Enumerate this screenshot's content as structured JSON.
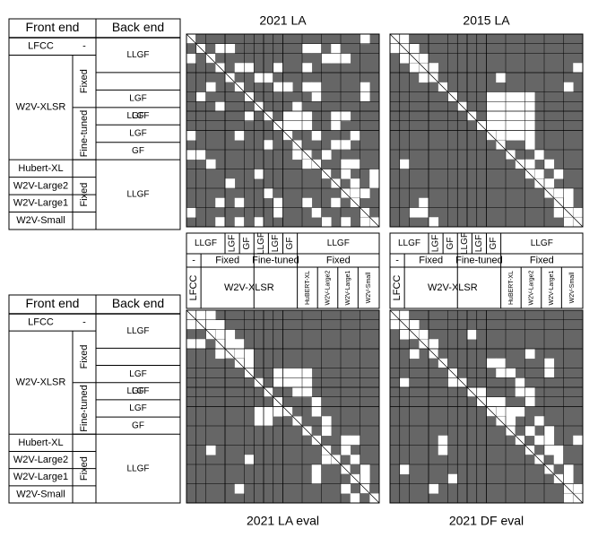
{
  "colors": {
    "cell": "#666666",
    "highlight": "#ffffff",
    "line": "#000000",
    "diag": "#8a8a8a"
  },
  "left_table": {
    "headers": {
      "front": "Front end",
      "back": "Back end"
    },
    "rows": [
      {
        "front": "LFCC",
        "group": "-",
        "back": "LLGF"
      },
      {
        "front": "W2V-XLSR",
        "group": "Fixed",
        "back": "LLGF"
      },
      {
        "front": "W2V-XLSR",
        "group": "Fixed",
        "back": "LGF"
      },
      {
        "front": "W2V-XLSR",
        "group": "Fixed",
        "back": "GF"
      },
      {
        "front": "W2V-XLSR",
        "group": "Fine-tuned",
        "back": "LLGF"
      },
      {
        "front": "W2V-XLSR",
        "group": "Fine-tuned",
        "back": "LGF"
      },
      {
        "front": "W2V-XLSR",
        "group": "Fine-tuned",
        "back": "GF"
      },
      {
        "front": "Hubert-XL",
        "group": "Fixed",
        "back": "LLGF"
      },
      {
        "front": "W2V-Large2",
        "group": "Fixed",
        "back": "LLGF"
      },
      {
        "front": "W2V-Large1",
        "group": "Fixed",
        "back": "LLGF"
      },
      {
        "front": "W2V-Small",
        "group": "Fixed",
        "back": "LLGF"
      }
    ]
  },
  "bottom_legend": {
    "back_labels": [
      "LLGF",
      "LGF",
      "GF",
      "LLGF",
      "LGF",
      "GF",
      "LLGF"
    ],
    "group_labels": [
      "-",
      "Fixed",
      "Fine-tuned",
      "Fixed"
    ],
    "front_labels": [
      "LFCC",
      "W2V-XLSR",
      "HuBERT-XL",
      "W2V-Large2",
      "W2V-Large1",
      "W2V-Small"
    ]
  },
  "chart_data": [
    {
      "type": "heatmap",
      "title": "2021 LA",
      "caption": "",
      "size": 20,
      "cells": [
        [
          0,
          18
        ],
        [
          1,
          3
        ],
        [
          1,
          4
        ],
        [
          1,
          12
        ],
        [
          1,
          13
        ],
        [
          1,
          15
        ],
        [
          2,
          0
        ],
        [
          2,
          14
        ],
        [
          2,
          15
        ],
        [
          2,
          16
        ],
        [
          3,
          5
        ],
        [
          3,
          6
        ],
        [
          3,
          9
        ],
        [
          3,
          12
        ],
        [
          4,
          7
        ],
        [
          4,
          8
        ],
        [
          5,
          2
        ],
        [
          5,
          9
        ],
        [
          5,
          10
        ],
        [
          5,
          12
        ],
        [
          5,
          13
        ],
        [
          5,
          18
        ],
        [
          6,
          1
        ],
        [
          6,
          13
        ],
        [
          6,
          18
        ],
        [
          7,
          3
        ],
        [
          7,
          11
        ],
        [
          8,
          6
        ],
        [
          8,
          10
        ],
        [
          8,
          11
        ],
        [
          8,
          12
        ],
        [
          8,
          15
        ],
        [
          8,
          16
        ],
        [
          9,
          9
        ],
        [
          9,
          10
        ],
        [
          9,
          11
        ],
        [
          9,
          12
        ],
        [
          9,
          15
        ],
        [
          10,
          0
        ],
        [
          10,
          5
        ],
        [
          10,
          13
        ],
        [
          10,
          17
        ],
        [
          11,
          8
        ],
        [
          11,
          15
        ],
        [
          11,
          16
        ],
        [
          12,
          0
        ],
        [
          12,
          1
        ],
        [
          12,
          11
        ],
        [
          12,
          12
        ],
        [
          12,
          14
        ],
        [
          13,
          2
        ],
        [
          13,
          12
        ],
        [
          13,
          16
        ],
        [
          13,
          17
        ],
        [
          14,
          7
        ],
        [
          14,
          14
        ],
        [
          14,
          16
        ],
        [
          14,
          19
        ],
        [
          15,
          4
        ],
        [
          15,
          17
        ],
        [
          15,
          19
        ],
        [
          16,
          8
        ],
        [
          16,
          16
        ],
        [
          16,
          17
        ],
        [
          16,
          18
        ],
        [
          17,
          3
        ],
        [
          17,
          5
        ],
        [
          17,
          9
        ],
        [
          17,
          12
        ],
        [
          17,
          15
        ],
        [
          18,
          0
        ],
        [
          18,
          9
        ],
        [
          18,
          13
        ],
        [
          19,
          3
        ],
        [
          19,
          5
        ],
        [
          19,
          7
        ],
        [
          19,
          14
        ],
        [
          19,
          16
        ],
        [
          19,
          18
        ]
      ]
    },
    {
      "type": "heatmap",
      "title": "2015 LA",
      "caption": "",
      "size": 20,
      "cells": [
        [
          0,
          1
        ],
        [
          1,
          0
        ],
        [
          1,
          2
        ],
        [
          2,
          1
        ],
        [
          2,
          3
        ],
        [
          3,
          2
        ],
        [
          3,
          4
        ],
        [
          3,
          19
        ],
        [
          4,
          3
        ],
        [
          4,
          11
        ],
        [
          5,
          18
        ],
        [
          6,
          10
        ],
        [
          6,
          11
        ],
        [
          6,
          12
        ],
        [
          6,
          13
        ],
        [
          6,
          14
        ],
        [
          7,
          10
        ],
        [
          7,
          11
        ],
        [
          7,
          12
        ],
        [
          7,
          13
        ],
        [
          7,
          14
        ],
        [
          8,
          10
        ],
        [
          8,
          11
        ],
        [
          8,
          12
        ],
        [
          8,
          13
        ],
        [
          8,
          14
        ],
        [
          9,
          10
        ],
        [
          9,
          11
        ],
        [
          9,
          12
        ],
        [
          9,
          13
        ],
        [
          9,
          14
        ],
        [
          10,
          10
        ],
        [
          10,
          11
        ],
        [
          10,
          12
        ],
        [
          10,
          13
        ],
        [
          10,
          14
        ],
        [
          11,
          14
        ],
        [
          12,
          15
        ],
        [
          13,
          1
        ],
        [
          13,
          14
        ],
        [
          13,
          16
        ],
        [
          14,
          15
        ],
        [
          14,
          17
        ],
        [
          15,
          16
        ],
        [
          16,
          17
        ],
        [
          16,
          18
        ],
        [
          17,
          3
        ],
        [
          17,
          18
        ],
        [
          18,
          2
        ],
        [
          18,
          3
        ],
        [
          18,
          17
        ],
        [
          18,
          19
        ],
        [
          19,
          4
        ],
        [
          19,
          18
        ]
      ]
    },
    {
      "type": "heatmap",
      "title": "",
      "caption": "2021 LA eval",
      "size": 20,
      "cells": [
        [
          0,
          1
        ],
        [
          0,
          2
        ],
        [
          1,
          0
        ],
        [
          1,
          1
        ],
        [
          1,
          2
        ],
        [
          1,
          3
        ],
        [
          2,
          2
        ],
        [
          2,
          3
        ],
        [
          2,
          4
        ],
        [
          3,
          0
        ],
        [
          3,
          1
        ],
        [
          3,
          4
        ],
        [
          3,
          5
        ],
        [
          4,
          3
        ],
        [
          4,
          5
        ],
        [
          4,
          6
        ],
        [
          5,
          6
        ],
        [
          6,
          9
        ],
        [
          6,
          10
        ],
        [
          6,
          11
        ],
        [
          6,
          12
        ],
        [
          7,
          9
        ],
        [
          7,
          10
        ],
        [
          7,
          11
        ],
        [
          7,
          12
        ],
        [
          8,
          11
        ],
        [
          8,
          12
        ],
        [
          9,
          9
        ],
        [
          9,
          13
        ],
        [
          10,
          7
        ],
        [
          10,
          8
        ],
        [
          10,
          9
        ],
        [
          10,
          13
        ],
        [
          11,
          7
        ],
        [
          11,
          8
        ],
        [
          11,
          11
        ],
        [
          11,
          14
        ],
        [
          12,
          14
        ],
        [
          13,
          16
        ],
        [
          13,
          17
        ],
        [
          14,
          2
        ],
        [
          14,
          16
        ],
        [
          15,
          6
        ],
        [
          15,
          14
        ],
        [
          15,
          15
        ],
        [
          15,
          17
        ],
        [
          16,
          13
        ],
        [
          16,
          18
        ],
        [
          17,
          13
        ],
        [
          17,
          18
        ],
        [
          18,
          5
        ],
        [
          18,
          16
        ],
        [
          19,
          17
        ]
      ]
    },
    {
      "type": "heatmap",
      "title": "",
      "caption": "2021 DF eval",
      "size": 20,
      "cells": [
        [
          0,
          1
        ],
        [
          1,
          0
        ],
        [
          1,
          2
        ],
        [
          2,
          1
        ],
        [
          2,
          3
        ],
        [
          2,
          8
        ],
        [
          3,
          3
        ],
        [
          3,
          4
        ],
        [
          4,
          2
        ],
        [
          4,
          14
        ],
        [
          5,
          10
        ],
        [
          5,
          11
        ],
        [
          5,
          16
        ],
        [
          6,
          11
        ],
        [
          6,
          12
        ],
        [
          6,
          16
        ],
        [
          7,
          1
        ],
        [
          7,
          6
        ],
        [
          7,
          13
        ],
        [
          8,
          9
        ],
        [
          8,
          13
        ],
        [
          8,
          14
        ],
        [
          9,
          10
        ],
        [
          9,
          11
        ],
        [
          9,
          14
        ],
        [
          10,
          10
        ],
        [
          10,
          11
        ],
        [
          10,
          12
        ],
        [
          10,
          13
        ],
        [
          11,
          11
        ],
        [
          11,
          12
        ],
        [
          11,
          15
        ],
        [
          12,
          14
        ],
        [
          12,
          16
        ],
        [
          13,
          5
        ],
        [
          13,
          15
        ],
        [
          13,
          16
        ],
        [
          13,
          19
        ],
        [
          14,
          5
        ],
        [
          14,
          16
        ],
        [
          14,
          17
        ],
        [
          15,
          17
        ],
        [
          16,
          1
        ],
        [
          16,
          18
        ],
        [
          17,
          6
        ],
        [
          17,
          18
        ],
        [
          18,
          4
        ],
        [
          18,
          19
        ],
        [
          19,
          18
        ]
      ]
    }
  ]
}
